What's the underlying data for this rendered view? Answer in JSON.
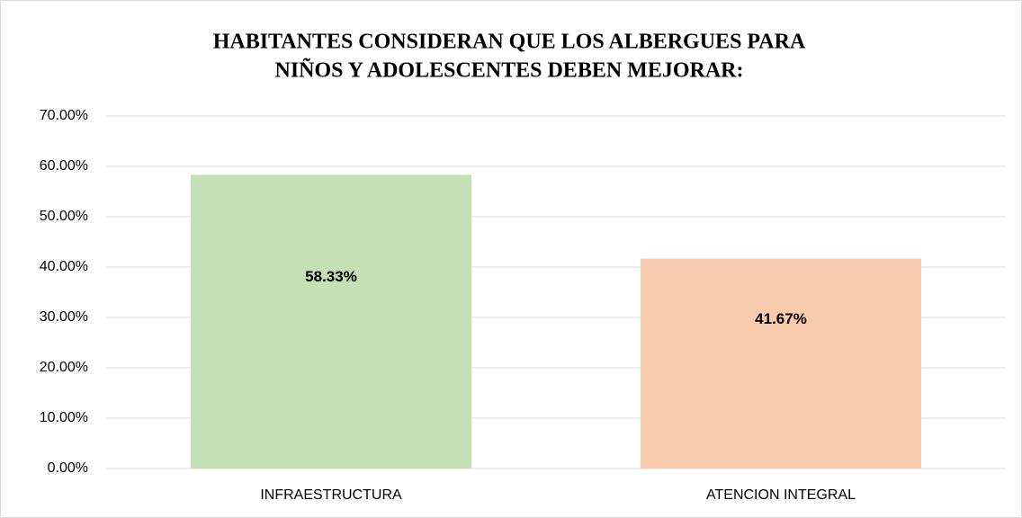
{
  "chart_data": {
    "type": "bar",
    "title": [
      "HABITANTES CONSIDERAN QUE LOS ALBERGUES PARA",
      "NIÑOS Y ADOLESCENTES DEBEN MEJORAR:"
    ],
    "categories": [
      "INFRAESTRUCTURA",
      "ATENCION INTEGRAL"
    ],
    "values": [
      58.33,
      41.67
    ],
    "value_labels": [
      "58.33%",
      "41.67%"
    ],
    "colors": [
      "#c5e0b4",
      "#f8cbad"
    ],
    "ylim": [
      0,
      70
    ],
    "yticks": [
      {
        "value": 0,
        "label": "0.00%"
      },
      {
        "value": 10,
        "label": "10.00%"
      },
      {
        "value": 20,
        "label": "20.00%"
      },
      {
        "value": 30,
        "label": "30.00%"
      },
      {
        "value": 40,
        "label": "40.00%"
      },
      {
        "value": 50,
        "label": "50.00%"
      },
      {
        "value": 60,
        "label": "60.00%"
      },
      {
        "value": 70,
        "label": "70.00%"
      }
    ],
    "grid": true
  }
}
